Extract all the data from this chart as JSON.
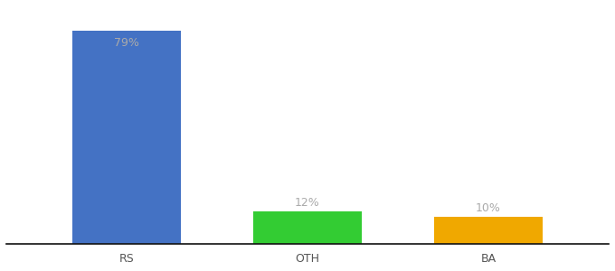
{
  "categories": [
    "RS",
    "OTH",
    "BA"
  ],
  "values": [
    79,
    12,
    10
  ],
  "bar_colors": [
    "#4472c4",
    "#33cc33",
    "#f0a800"
  ],
  "label_color": "#aaaaaa",
  "bar_labels": [
    "79%",
    "12%",
    "10%"
  ],
  "background_color": "#ffffff",
  "ylim": [
    0,
    88
  ],
  "xlim": [
    -0.5,
    4.5
  ],
  "x_positions": [
    0.5,
    2.0,
    3.5
  ],
  "bar_width": 0.9,
  "label_fontsize": 9,
  "tick_fontsize": 9
}
